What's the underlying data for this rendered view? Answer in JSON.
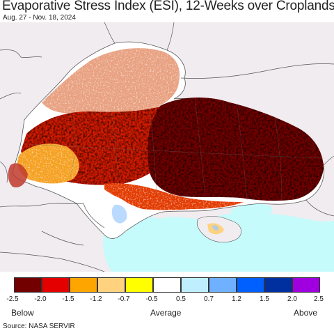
{
  "title": "Evaporative Stress Index (ESI), 12-Weeks over Croplands",
  "subtitle": "Aug. 27 - Nov. 18, 2024",
  "legend": {
    "colors": [
      "#720000",
      "#e50000",
      "#ffa500",
      "#ffd27f",
      "#ffff00",
      "#ffffff",
      "#bfefff",
      "#6fb0ff",
      "#0060ff",
      "#0030a0",
      "#a000e0"
    ],
    "ticks": [
      "-2.5",
      "-2.0",
      "-1.5",
      "-1.2",
      "-0.7",
      "-0.5",
      "0.5",
      "0.7",
      "1.2",
      "1.5",
      "2.0",
      "2.5"
    ],
    "below": "Below",
    "average": "Average",
    "above": "Above"
  },
  "source": "Source: NASA SERVIR",
  "map_colors": {
    "land": "#f0ecf0",
    "sea": "#c6fbfb",
    "border": "#555555"
  }
}
